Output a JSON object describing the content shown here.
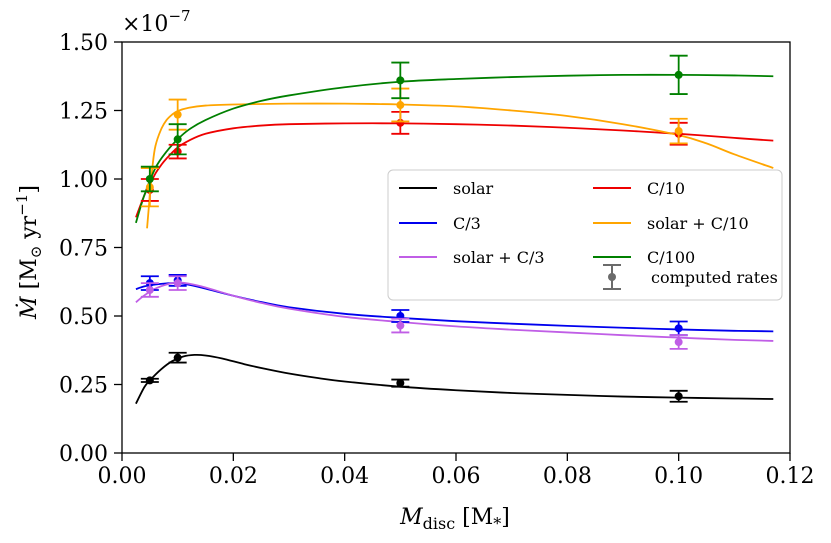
{
  "chart_data": {
    "type": "line",
    "title": "",
    "xlabel": "M_disc [M_*]",
    "xlabel_main": "M",
    "xlabel_sub": "disc",
    "xlabel_unit": "[M",
    "xlabel_unit_sub": "*",
    "xlabel_close": "]",
    "ylabel": "Ṁ [M☉ yr⁻¹]",
    "ylabel_main": "Ṁ",
    "ylabel_unit": "[M",
    "ylabel_unit_sub": "⊙",
    "ylabel_yr": " yr",
    "ylabel_exp": "−1",
    "ylabel_close": "]",
    "y_offset_text": "×10",
    "y_offset_exp": "−7",
    "xlim": [
      0.0,
      0.12
    ],
    "ylim": [
      0.0,
      1.5
    ],
    "xticks": [
      0.0,
      0.02,
      0.04,
      0.06,
      0.08,
      0.1,
      0.12
    ],
    "xtick_labels": [
      "0.00",
      "0.02",
      "0.04",
      "0.06",
      "0.08",
      "0.10",
      "0.12"
    ],
    "yticks": [
      0.0,
      0.25,
      0.5,
      0.75,
      1.0,
      1.25,
      1.5
    ],
    "ytick_labels": [
      "0.00",
      "0.25",
      "0.50",
      "0.75",
      "1.00",
      "1.25",
      "1.50"
    ],
    "y_scale_factor": "1e-7",
    "legend_position": "center-right",
    "series": [
      {
        "name": "solar",
        "color": "#000000",
        "curve": {
          "x": [
            0.0025,
            0.004,
            0.005,
            0.007,
            0.009,
            0.011,
            0.013,
            0.015,
            0.018,
            0.022,
            0.026,
            0.03,
            0.035,
            0.04,
            0.05,
            0.06,
            0.07,
            0.08,
            0.09,
            0.1,
            0.11,
            0.117
          ],
          "y": [
            0.18,
            0.24,
            0.265,
            0.305,
            0.335,
            0.352,
            0.358,
            0.356,
            0.345,
            0.324,
            0.306,
            0.29,
            0.274,
            0.261,
            0.242,
            0.229,
            0.219,
            0.212,
            0.206,
            0.202,
            0.199,
            0.197
          ]
        },
        "points": {
          "x": [
            0.005,
            0.01,
            0.05,
            0.1
          ],
          "y": [
            0.265,
            0.348,
            0.255,
            0.207
          ],
          "err": [
            0.006,
            0.018,
            0.013,
            0.02
          ]
        }
      },
      {
        "name": "C/3",
        "color": "#0000ee",
        "curve": {
          "x": [
            0.0025,
            0.004,
            0.006,
            0.008,
            0.01,
            0.012,
            0.015,
            0.02,
            0.025,
            0.03,
            0.04,
            0.05,
            0.06,
            0.07,
            0.08,
            0.09,
            0.1,
            0.11,
            0.117
          ],
          "y": [
            0.598,
            0.608,
            0.615,
            0.619,
            0.62,
            0.614,
            0.6,
            0.574,
            0.551,
            0.532,
            0.508,
            0.493,
            0.481,
            0.472,
            0.464,
            0.457,
            0.451,
            0.446,
            0.444
          ]
        },
        "points": {
          "x": [
            0.005,
            0.01,
            0.05,
            0.1
          ],
          "y": [
            0.62,
            0.63,
            0.5,
            0.455
          ],
          "err": [
            0.025,
            0.02,
            0.022,
            0.025
          ]
        }
      },
      {
        "name": "solar + C/3",
        "color": "#c05ee6",
        "curve": {
          "x": [
            0.0025,
            0.004,
            0.006,
            0.008,
            0.01,
            0.012,
            0.015,
            0.02,
            0.025,
            0.03,
            0.04,
            0.05,
            0.06,
            0.07,
            0.08,
            0.09,
            0.1,
            0.11,
            0.117
          ],
          "y": [
            0.55,
            0.575,
            0.6,
            0.615,
            0.622,
            0.618,
            0.604,
            0.574,
            0.548,
            0.527,
            0.497,
            0.478,
            0.462,
            0.45,
            0.44,
            0.43,
            0.421,
            0.413,
            0.409
          ]
        },
        "points": {
          "x": [
            0.005,
            0.01,
            0.05,
            0.1
          ],
          "y": [
            0.595,
            0.62,
            0.465,
            0.405
          ],
          "err": [
            0.025,
            0.025,
            0.025,
            0.025
          ]
        }
      },
      {
        "name": "C/10",
        "color": "#ee0000",
        "curve": {
          "x": [
            0.0025,
            0.004,
            0.005,
            0.006,
            0.007,
            0.008,
            0.01,
            0.012,
            0.015,
            0.02,
            0.025,
            0.03,
            0.04,
            0.05,
            0.06,
            0.07,
            0.08,
            0.09,
            0.1,
            0.11,
            0.117
          ],
          "y": [
            0.86,
            0.94,
            0.98,
            1.02,
            1.05,
            1.075,
            1.115,
            1.14,
            1.165,
            1.185,
            1.195,
            1.2,
            1.203,
            1.203,
            1.2,
            1.195,
            1.187,
            1.177,
            1.165,
            1.15,
            1.14
          ]
        },
        "points": {
          "x": [
            0.005,
            0.01,
            0.05,
            0.1
          ],
          "y": [
            0.96,
            1.1,
            1.205,
            1.165
          ],
          "err": [
            0.04,
            0.025,
            0.04,
            0.04
          ]
        }
      },
      {
        "name": "solar + C/10",
        "color": "#ffa500",
        "curve": {
          "x": [
            0.0045,
            0.005,
            0.0055,
            0.006,
            0.007,
            0.008,
            0.009,
            0.01,
            0.012,
            0.015,
            0.02,
            0.03,
            0.04,
            0.05,
            0.06,
            0.07,
            0.08,
            0.09,
            0.1,
            0.105,
            0.11,
            0.117
          ],
          "y": [
            0.82,
            0.94,
            1.05,
            1.12,
            1.18,
            1.215,
            1.235,
            1.248,
            1.26,
            1.268,
            1.272,
            1.275,
            1.275,
            1.272,
            1.265,
            1.25,
            1.23,
            1.2,
            1.16,
            1.13,
            1.09,
            1.04
          ]
        },
        "points": {
          "x": [
            0.005,
            0.01,
            0.05,
            0.1
          ],
          "y": [
            0.97,
            1.235,
            1.27,
            1.175
          ],
          "err": [
            0.07,
            0.055,
            0.06,
            0.045
          ]
        }
      },
      {
        "name": "C/100",
        "color": "#008000",
        "curve": {
          "x": [
            0.0025,
            0.004,
            0.006,
            0.008,
            0.01,
            0.012,
            0.015,
            0.02,
            0.025,
            0.03,
            0.04,
            0.05,
            0.06,
            0.07,
            0.08,
            0.09,
            0.1,
            0.11,
            0.117
          ],
          "y": [
            0.84,
            0.94,
            1.04,
            1.1,
            1.145,
            1.18,
            1.215,
            1.257,
            1.285,
            1.305,
            1.335,
            1.355,
            1.365,
            1.372,
            1.377,
            1.38,
            1.38,
            1.378,
            1.375
          ]
        },
        "points": {
          "x": [
            0.005,
            0.01,
            0.05,
            0.1
          ],
          "y": [
            1.0,
            1.145,
            1.36,
            1.38
          ],
          "err": [
            0.045,
            0.055,
            0.065,
            0.07
          ]
        }
      }
    ],
    "legend": {
      "left_column": [
        "solar",
        "C/3",
        "solar + C/3"
      ],
      "right_column": [
        "C/10",
        "solar + C/10",
        "C/100"
      ],
      "errorbar_label": "computed rates",
      "errorbar_color": "#6b6b6b"
    }
  }
}
